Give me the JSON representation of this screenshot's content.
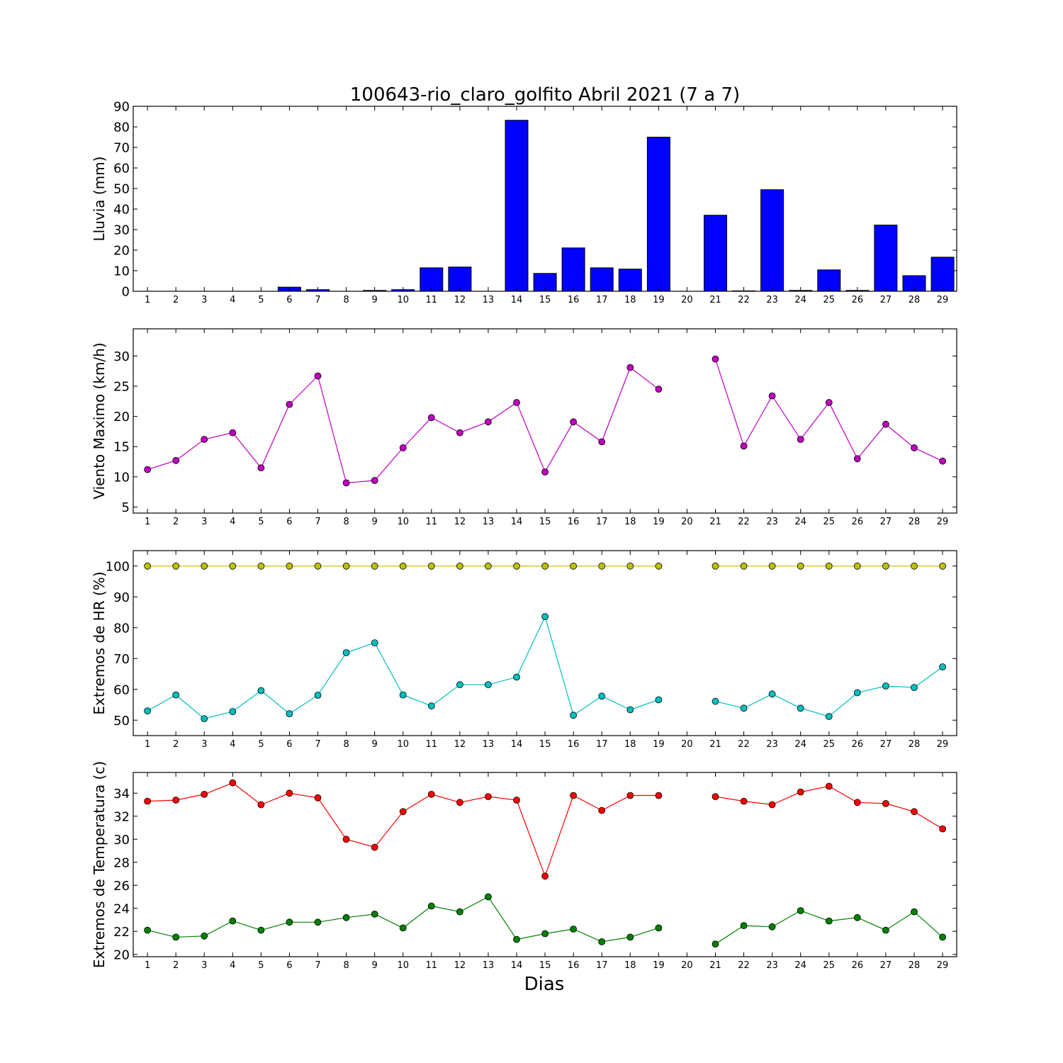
{
  "title": "100643-rio_claro_golfito Abril 2021  (7 a 7)",
  "xlabel": "Dias",
  "colors": {
    "rain": "#0000ff",
    "wind": "#bf00bf",
    "hr_max": "#bfbf00",
    "hr_min": "#00bfbf",
    "temp_max": "#ff0000",
    "temp_min": "#008000"
  },
  "chart_data": [
    {
      "type": "bar",
      "ylabel": "Lluvia (mm)",
      "ylim": [
        0,
        90
      ],
      "yticks": [
        0,
        10,
        20,
        30,
        40,
        50,
        60,
        70,
        80,
        90
      ],
      "categories": [
        1,
        2,
        3,
        4,
        5,
        6,
        7,
        8,
        9,
        10,
        11,
        12,
        13,
        14,
        15,
        16,
        17,
        18,
        19,
        20,
        21,
        22,
        23,
        24,
        25,
        26,
        27,
        28,
        29
      ],
      "values": [
        0,
        0,
        0,
        0,
        0,
        2,
        0.8,
        0,
        0.4,
        0.8,
        11.4,
        11.8,
        0,
        83.2,
        8.7,
        21.1,
        11.4,
        10.8,
        75,
        0,
        37,
        0.2,
        49.4,
        0.4,
        10.4,
        0.4,
        32.2,
        7.6,
        16.6
      ]
    },
    {
      "type": "line",
      "ylabel": "Viento Maximo (km/h)",
      "ylim": [
        4,
        34.5
      ],
      "yticks": [
        5,
        10,
        15,
        20,
        25,
        30
      ],
      "x": [
        1,
        2,
        3,
        4,
        5,
        6,
        7,
        8,
        9,
        10,
        11,
        12,
        13,
        14,
        15,
        16,
        17,
        18,
        19,
        20,
        21,
        22,
        23,
        24,
        25,
        26,
        27,
        28,
        29
      ],
      "series": [
        {
          "values": [
            11.2,
            12.7,
            16.2,
            17.3,
            11.5,
            22,
            26.7,
            9,
            9.4,
            14.8,
            19.8,
            17.3,
            19.1,
            22.3,
            10.8,
            19.1,
            15.8,
            28.1,
            24.5,
            null,
            29.5,
            15.1,
            23.4,
            16.2,
            22.3,
            13,
            18.7,
            14.8,
            12.6
          ]
        }
      ]
    },
    {
      "type": "line",
      "ylabel": "Extremos de HR (%)",
      "ylim": [
        45,
        105
      ],
      "yticks": [
        50,
        60,
        70,
        80,
        90,
        100
      ],
      "x": [
        1,
        2,
        3,
        4,
        5,
        6,
        7,
        8,
        9,
        10,
        11,
        12,
        13,
        14,
        15,
        16,
        17,
        18,
        19,
        20,
        21,
        22,
        23,
        24,
        25,
        26,
        27,
        28,
        29
      ],
      "series": [
        {
          "values": [
            100,
            100,
            100,
            100,
            100,
            100,
            100,
            100,
            100,
            100,
            100,
            100,
            100,
            100,
            100,
            100,
            100,
            100,
            100,
            null,
            100,
            100,
            100,
            100,
            100,
            100,
            100,
            100,
            100
          ]
        },
        {
          "values": [
            53,
            58.2,
            50.5,
            52.8,
            59.6,
            52.1,
            58.1,
            71.9,
            75.1,
            58.2,
            54.6,
            61.5,
            61.5,
            64,
            83.6,
            51.6,
            57.8,
            53.4,
            56.6,
            null,
            56.1,
            53.9,
            58.5,
            53.9,
            51.2,
            58.9,
            61.1,
            60.6,
            67.3
          ]
        }
      ]
    },
    {
      "type": "line",
      "ylabel": "Extremos de Temperatura (c)",
      "ylim": [
        19.8,
        35.8
      ],
      "yticks": [
        20,
        22,
        24,
        26,
        28,
        30,
        32,
        34
      ],
      "x": [
        1,
        2,
        3,
        4,
        5,
        6,
        7,
        8,
        9,
        10,
        11,
        12,
        13,
        14,
        15,
        16,
        17,
        18,
        19,
        20,
        21,
        22,
        23,
        24,
        25,
        26,
        27,
        28,
        29
      ],
      "series": [
        {
          "values": [
            33.3,
            33.4,
            33.9,
            34.9,
            33,
            34,
            33.6,
            30,
            29.3,
            32.4,
            33.9,
            33.2,
            33.7,
            33.4,
            26.8,
            33.8,
            32.5,
            33.8,
            33.8,
            null,
            33.7,
            33.3,
            33,
            34.1,
            34.6,
            33.2,
            33.1,
            32.4,
            30.9
          ]
        },
        {
          "values": [
            22.1,
            21.5,
            21.6,
            22.9,
            22.1,
            22.8,
            22.8,
            23.2,
            23.5,
            22.3,
            24.2,
            23.7,
            25,
            21.3,
            21.8,
            22.2,
            21.1,
            21.5,
            22.3,
            null,
            20.9,
            22.5,
            22.4,
            23.8,
            22.9,
            23.2,
            22.1,
            23.7,
            21.5
          ]
        }
      ]
    }
  ]
}
